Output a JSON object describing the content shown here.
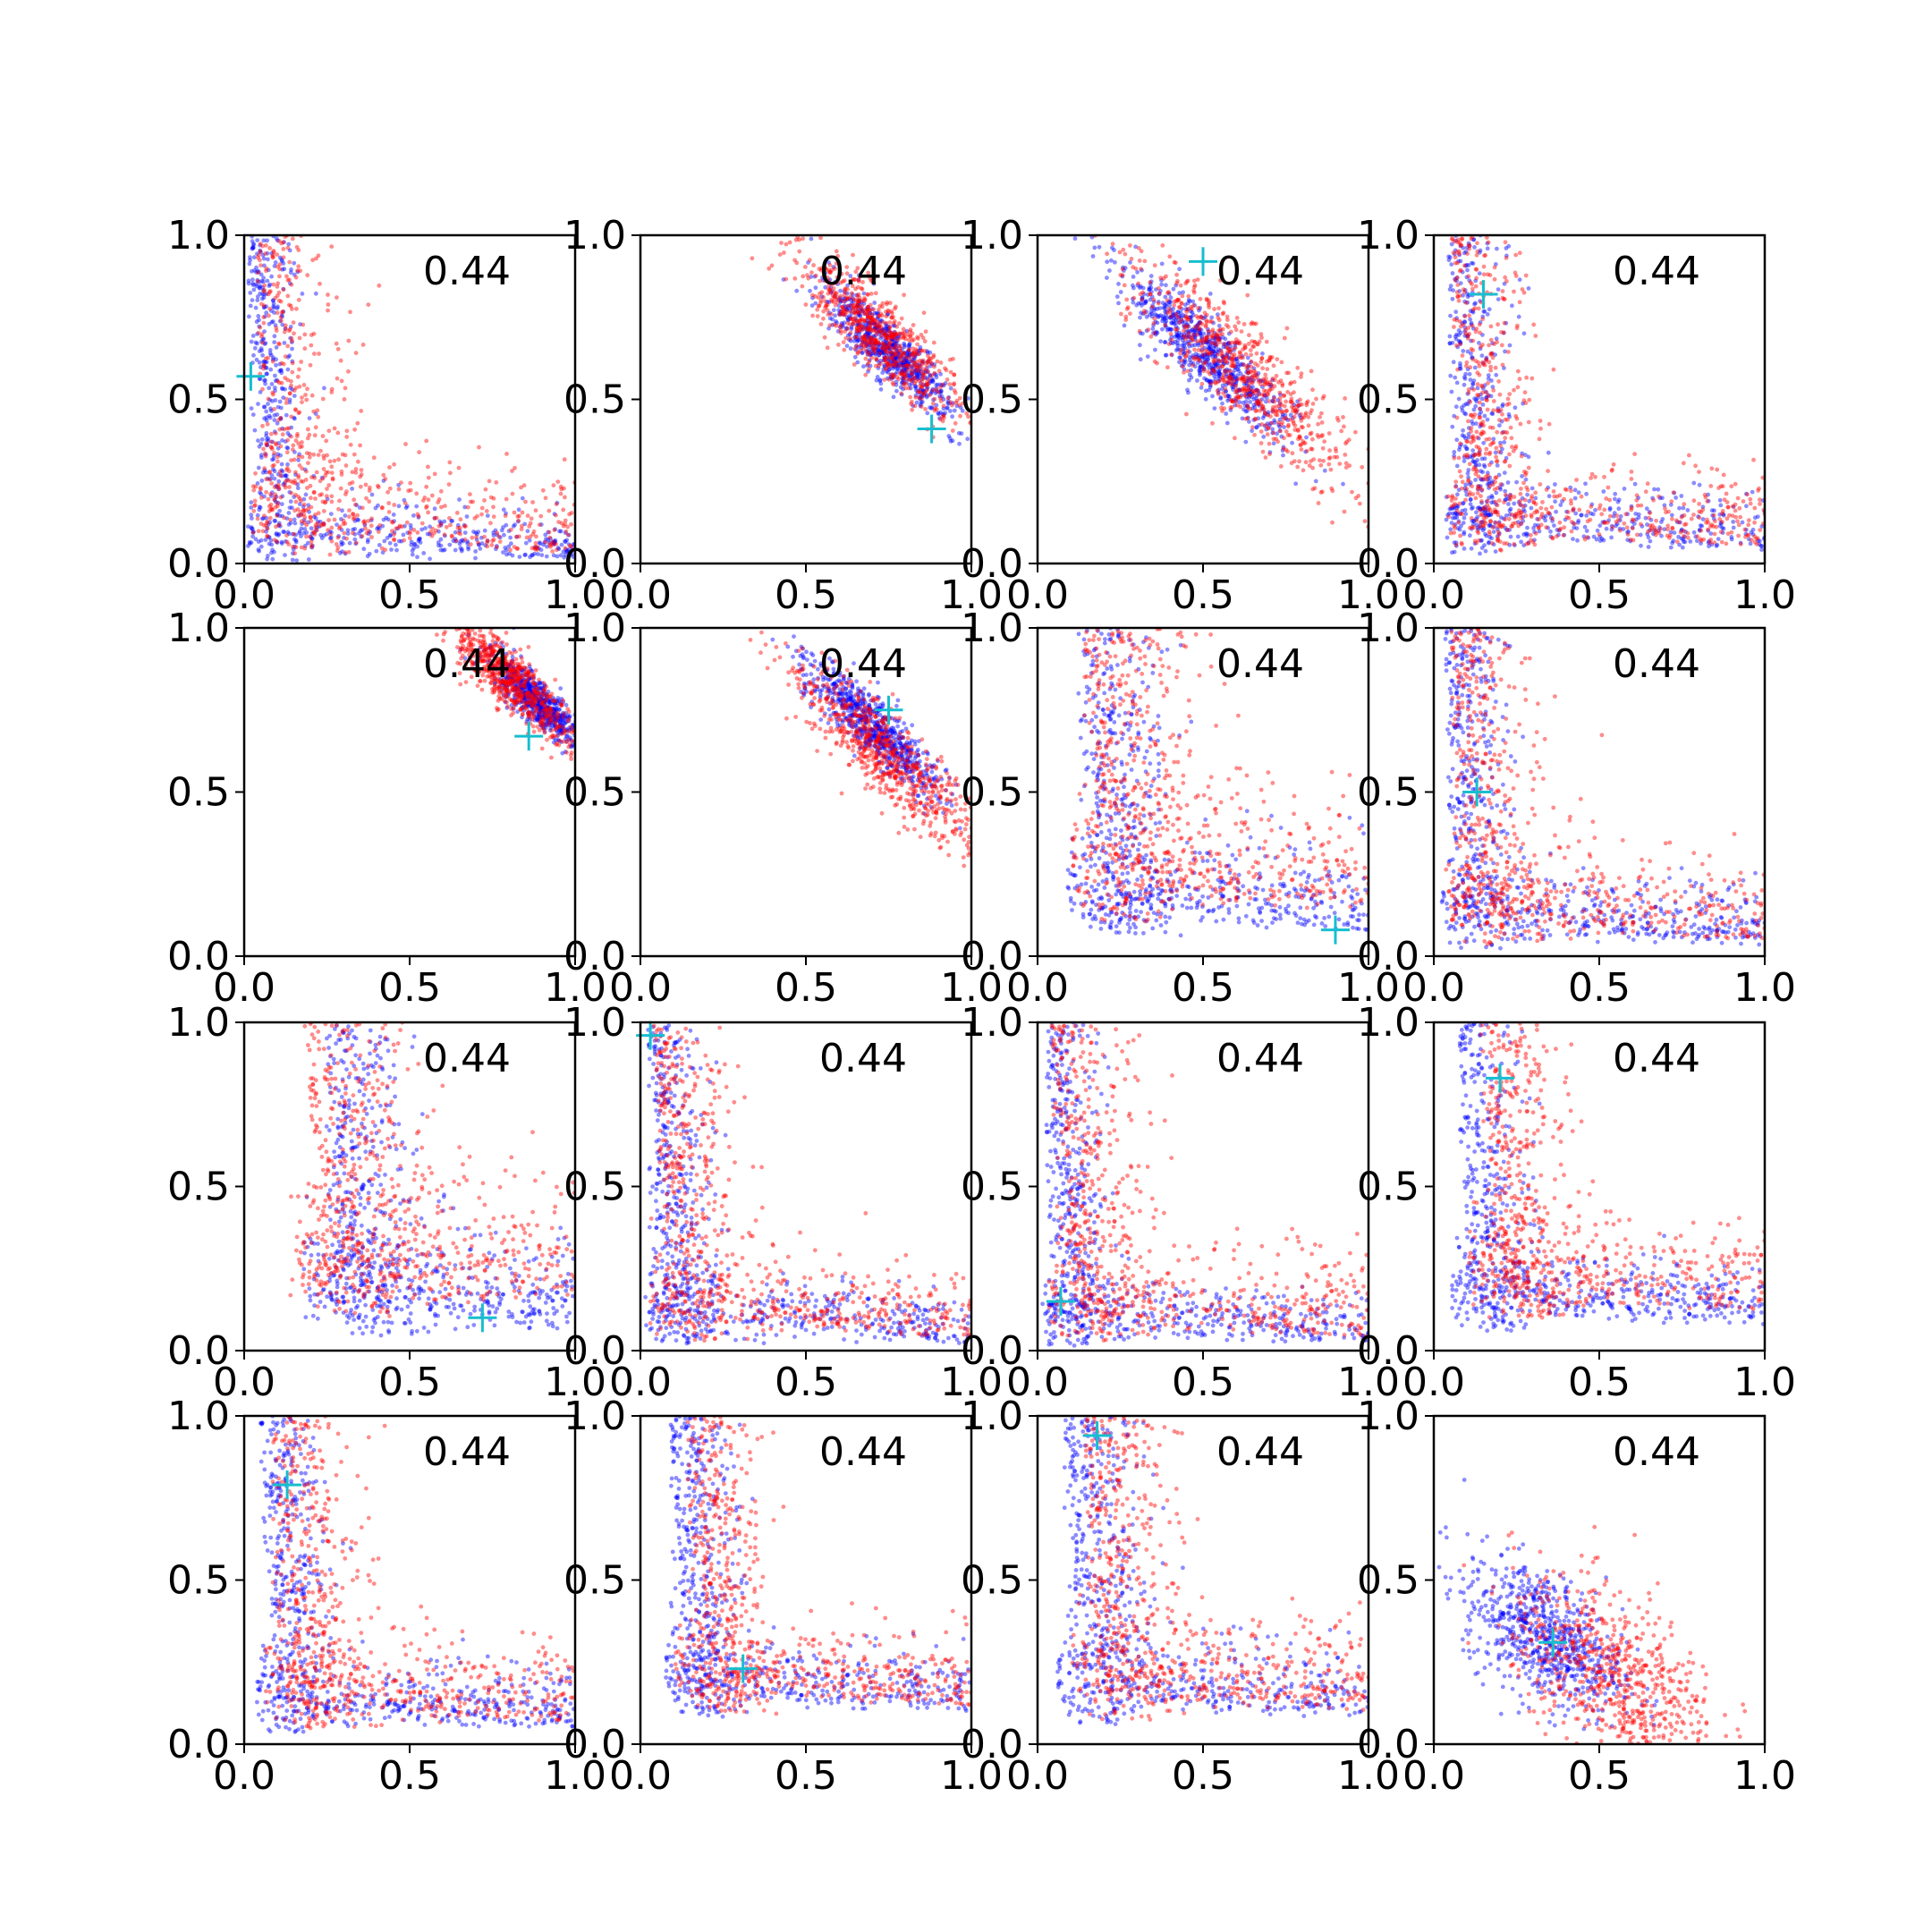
{
  "chart_data": {
    "type": "scatter",
    "layout": "4x4 grid of scatter subplots",
    "n_rows": 4,
    "n_cols": 4,
    "xlim": [
      0.0,
      1.0
    ],
    "ylim": [
      0.0,
      1.0
    ],
    "ticks": [
      0.0,
      0.5,
      1.0
    ],
    "tick_labels": [
      "0.0",
      "0.5",
      "1.0"
    ],
    "series_colors": {
      "blue": "#0000ff",
      "red": "#ff0000",
      "marker": "#17becf"
    },
    "panels": [
      {
        "annotation": "0.44",
        "shape": "L",
        "blue": {
          "cx": 0.03,
          "cy": 0.03,
          "spread": 0.06
        },
        "red": {
          "cx": 0.08,
          "cy": 0.08,
          "spread": 0.13
        },
        "marker": [
          0.02,
          0.57
        ]
      },
      {
        "annotation": "0.44",
        "shape": "diag",
        "blue": {
          "cx": 0.75,
          "cy": 0.65,
          "spread": 0.07
        },
        "red": {
          "cx": 0.72,
          "cy": 0.7,
          "spread": 0.09
        },
        "marker": [
          0.88,
          0.41
        ]
      },
      {
        "annotation": "0.44",
        "shape": "diag",
        "blue": {
          "cx": 0.5,
          "cy": 0.65,
          "spread": 0.09
        },
        "red": {
          "cx": 0.62,
          "cy": 0.58,
          "spread": 0.12
        },
        "marker": [
          0.5,
          0.92
        ]
      },
      {
        "annotation": "0.44",
        "shape": "L",
        "blue": {
          "cx": 0.1,
          "cy": 0.1,
          "spread": 0.08
        },
        "red": {
          "cx": 0.13,
          "cy": 0.13,
          "spread": 0.1
        },
        "marker": [
          0.15,
          0.82
        ]
      },
      {
        "annotation": "0.44",
        "shape": "diag",
        "blue": {
          "cx": 0.88,
          "cy": 0.78,
          "spread": 0.05
        },
        "red": {
          "cx": 0.8,
          "cy": 0.85,
          "spread": 0.07
        },
        "marker": [
          0.86,
          0.67
        ]
      },
      {
        "annotation": "0.44",
        "shape": "diag",
        "blue": {
          "cx": 0.7,
          "cy": 0.7,
          "spread": 0.07
        },
        "red": {
          "cx": 0.75,
          "cy": 0.6,
          "spread": 0.1
        },
        "marker": [
          0.75,
          0.75
        ]
      },
      {
        "annotation": "0.44",
        "shape": "L",
        "blue": {
          "cx": 0.3,
          "cy": 0.2,
          "spread": 0.12
        },
        "red": {
          "cx": 0.35,
          "cy": 0.35,
          "spread": 0.16
        },
        "marker": [
          0.9,
          0.08
        ]
      },
      {
        "annotation": "0.44",
        "shape": "L",
        "blue": {
          "cx": 0.08,
          "cy": 0.08,
          "spread": 0.08
        },
        "red": {
          "cx": 0.12,
          "cy": 0.12,
          "spread": 0.12
        },
        "marker": [
          0.13,
          0.5
        ]
      },
      {
        "annotation": "0.44",
        "shape": "L",
        "blue": {
          "cx": 0.6,
          "cy": 0.15,
          "spread": 0.12
        },
        "red": {
          "cx": 0.45,
          "cy": 0.35,
          "spread": 0.18
        },
        "marker": [
          0.72,
          0.1
        ]
      },
      {
        "annotation": "0.44",
        "shape": "L",
        "blue": {
          "cx": 0.05,
          "cy": 0.05,
          "spread": 0.07
        },
        "red": {
          "cx": 0.1,
          "cy": 0.1,
          "spread": 0.1
        },
        "marker": [
          0.03,
          0.96
        ]
      },
      {
        "annotation": "0.44",
        "shape": "L",
        "blue": {
          "cx": 0.05,
          "cy": 0.05,
          "spread": 0.07
        },
        "red": {
          "cx": 0.1,
          "cy": 0.1,
          "spread": 0.12
        },
        "marker": [
          0.07,
          0.15
        ]
      },
      {
        "annotation": "0.44",
        "shape": "L",
        "blue": {
          "cx": 0.18,
          "cy": 0.2,
          "spread": 0.08
        },
        "red": {
          "cx": 0.35,
          "cy": 0.3,
          "spread": 0.12
        },
        "marker": [
          0.2,
          0.83
        ]
      },
      {
        "annotation": "0.44",
        "shape": "L",
        "blue": {
          "cx": 0.12,
          "cy": 0.12,
          "spread": 0.08
        },
        "red": {
          "cx": 0.2,
          "cy": 0.15,
          "spread": 0.12
        },
        "marker": [
          0.13,
          0.79
        ]
      },
      {
        "annotation": "0.44",
        "shape": "L",
        "blue": {
          "cx": 0.22,
          "cy": 0.25,
          "spread": 0.08
        },
        "red": {
          "cx": 0.35,
          "cy": 0.3,
          "spread": 0.1
        },
        "marker": [
          0.31,
          0.23
        ]
      },
      {
        "annotation": "0.44",
        "shape": "L",
        "blue": {
          "cx": 0.2,
          "cy": 0.2,
          "spread": 0.1
        },
        "red": {
          "cx": 0.35,
          "cy": 0.25,
          "spread": 0.12
        },
        "marker": [
          0.18,
          0.94
        ]
      },
      {
        "annotation": "0.44",
        "shape": "blob",
        "blue": {
          "cx": 0.33,
          "cy": 0.33,
          "spread": 0.1
        },
        "red": {
          "cx": 0.55,
          "cy": 0.2,
          "spread": 0.13
        },
        "marker": [
          0.36,
          0.31
        ]
      }
    ]
  }
}
